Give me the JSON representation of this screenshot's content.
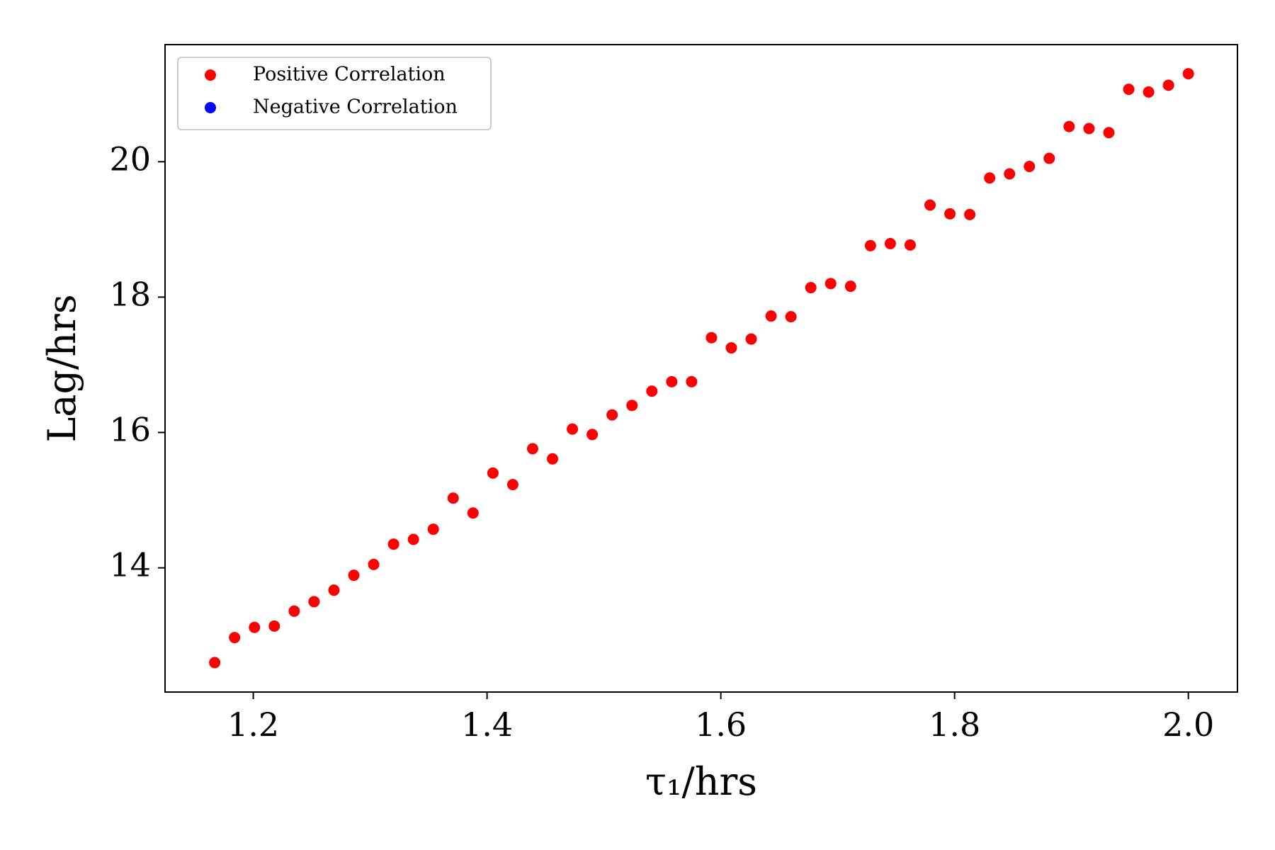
{
  "chart_data": {
    "type": "scatter",
    "x_label": "τ₁/hrs",
    "y_label": "Lag/hrs",
    "xlim": [
      1.1245,
      2.042
    ],
    "ylim": [
      12.165,
      21.73
    ],
    "xticks": [
      1.2,
      1.4,
      1.6,
      1.8,
      {
        "value": 2,
        "label": "2.0"
      }
    ],
    "yticks": [
      14,
      16,
      18,
      20
    ],
    "grid": false,
    "legend": "upper left",
    "series": [
      {
        "name": "Positive Correlation",
        "color": "#ff0000",
        "x": [
          1.167,
          1.184,
          1.201,
          1.218,
          1.235,
          1.252,
          1.269,
          1.286,
          1.303,
          1.32,
          1.337,
          1.354,
          1.371,
          1.388,
          1.405,
          1.422,
          1.439,
          1.456,
          1.473,
          1.49,
          1.507,
          1.524,
          1.541,
          1.558,
          1.575,
          1.592,
          1.609,
          1.626,
          1.643,
          1.66,
          1.677,
          1.694,
          1.711,
          1.728,
          1.745,
          1.762,
          1.779,
          1.796,
          1.813,
          1.83,
          1.847,
          1.864,
          1.881,
          1.898,
          1.915,
          1.932,
          1.949,
          1.966,
          1.983,
          2.0
        ],
        "values": [
          12.6,
          12.97,
          13.12,
          13.14,
          13.36,
          13.5,
          13.67,
          13.89,
          14.05,
          14.35,
          14.42,
          14.57,
          15.03,
          14.81,
          15.4,
          15.23,
          15.76,
          15.61,
          16.05,
          15.97,
          16.26,
          16.4,
          16.61,
          16.75,
          16.75,
          17.4,
          17.25,
          17.38,
          17.72,
          17.71,
          18.14,
          18.2,
          18.16,
          18.76,
          18.79,
          18.77,
          19.36,
          19.23,
          19.22,
          19.76,
          19.82,
          19.93,
          20.05,
          20.52,
          20.49,
          20.43,
          21.07,
          21.03,
          21.13,
          21.3
        ]
      },
      {
        "name": "Negative Correlation",
        "color": "#0000ff",
        "x": [],
        "values": []
      }
    ]
  }
}
